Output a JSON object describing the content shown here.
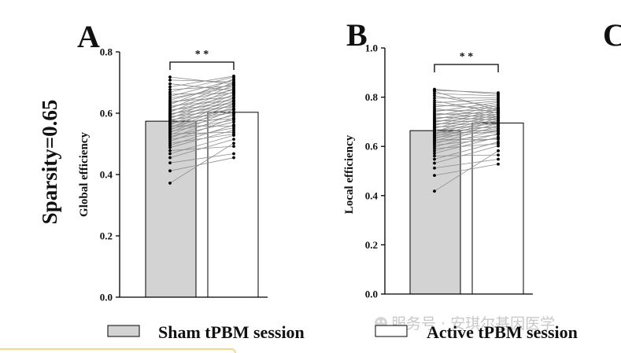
{
  "chart_data": [
    {
      "panel_label": "A",
      "type": "bar",
      "ylabel": "Global efficiency",
      "ylim": [
        0.0,
        0.8
      ],
      "yticks": [
        "0.0",
        "0.2",
        "0.4",
        "0.6",
        "0.8"
      ],
      "categories": [
        "Sham tPBM session",
        "Active tPBM session"
      ],
      "values": [
        0.574,
        0.603
      ],
      "significance": "* *",
      "pairs": [
        [
          0.372,
          0.502
        ],
        [
          0.412,
          0.455
        ],
        [
          0.438,
          0.468
        ],
        [
          0.455,
          0.515
        ],
        [
          0.468,
          0.528
        ],
        [
          0.478,
          0.492
        ],
        [
          0.488,
          0.545
        ],
        [
          0.495,
          0.562
        ],
        [
          0.502,
          0.532
        ],
        [
          0.508,
          0.585
        ],
        [
          0.514,
          0.552
        ],
        [
          0.519,
          0.598
        ],
        [
          0.524,
          0.571
        ],
        [
          0.529,
          0.612
        ],
        [
          0.533,
          0.538
        ],
        [
          0.537,
          0.622
        ],
        [
          0.541,
          0.578
        ],
        [
          0.545,
          0.632
        ],
        [
          0.549,
          0.592
        ],
        [
          0.552,
          0.641
        ],
        [
          0.556,
          0.604
        ],
        [
          0.559,
          0.558
        ],
        [
          0.562,
          0.651
        ],
        [
          0.566,
          0.615
        ],
        [
          0.569,
          0.582
        ],
        [
          0.572,
          0.662
        ],
        [
          0.576,
          0.628
        ],
        [
          0.579,
          0.601
        ],
        [
          0.582,
          0.671
        ],
        [
          0.586,
          0.638
        ],
        [
          0.589,
          0.612
        ],
        [
          0.592,
          0.681
        ],
        [
          0.596,
          0.648
        ],
        [
          0.599,
          0.622
        ],
        [
          0.603,
          0.692
        ],
        [
          0.607,
          0.658
        ],
        [
          0.611,
          0.632
        ],
        [
          0.615,
          0.701
        ],
        [
          0.619,
          0.668
        ],
        [
          0.624,
          0.642
        ],
        [
          0.628,
          0.712
        ],
        [
          0.633,
          0.676
        ],
        [
          0.638,
          0.652
        ],
        [
          0.643,
          0.695
        ],
        [
          0.649,
          0.684
        ],
        [
          0.655,
          0.708
        ],
        [
          0.662,
          0.665
        ],
        [
          0.669,
          0.718
        ],
        [
          0.677,
          0.689
        ],
        [
          0.686,
          0.721
        ],
        [
          0.696,
          0.674
        ],
        [
          0.708,
          0.702
        ],
        [
          0.718,
          0.695
        ]
      ]
    },
    {
      "panel_label": "B",
      "type": "bar",
      "ylabel": "Local efficiency",
      "ylim": [
        0.0,
        1.0
      ],
      "yticks": [
        "0.0",
        "0.2",
        "0.4",
        "0.6",
        "0.8",
        "1.0"
      ],
      "categories": [
        "Sham tPBM session",
        "Active tPBM session"
      ],
      "values": [
        0.664,
        0.695
      ],
      "significance": "* *",
      "pairs": [
        [
          0.418,
          0.582
        ],
        [
          0.482,
          0.528
        ],
        [
          0.512,
          0.548
        ],
        [
          0.532,
          0.602
        ],
        [
          0.548,
          0.618
        ],
        [
          0.561,
          0.565
        ],
        [
          0.572,
          0.638
        ],
        [
          0.582,
          0.652
        ],
        [
          0.591,
          0.611
        ],
        [
          0.598,
          0.668
        ],
        [
          0.605,
          0.632
        ],
        [
          0.611,
          0.682
        ],
        [
          0.617,
          0.648
        ],
        [
          0.622,
          0.694
        ],
        [
          0.627,
          0.629
        ],
        [
          0.632,
          0.705
        ],
        [
          0.637,
          0.662
        ],
        [
          0.641,
          0.715
        ],
        [
          0.645,
          0.672
        ],
        [
          0.649,
          0.724
        ],
        [
          0.653,
          0.684
        ],
        [
          0.657,
          0.655
        ],
        [
          0.661,
          0.733
        ],
        [
          0.665,
          0.694
        ],
        [
          0.669,
          0.662
        ],
        [
          0.673,
          0.742
        ],
        [
          0.677,
          0.704
        ],
        [
          0.681,
          0.675
        ],
        [
          0.685,
          0.751
        ],
        [
          0.689,
          0.714
        ],
        [
          0.693,
          0.688
        ],
        [
          0.697,
          0.758
        ],
        [
          0.701,
          0.722
        ],
        [
          0.705,
          0.698
        ],
        [
          0.709,
          0.766
        ],
        [
          0.714,
          0.731
        ],
        [
          0.719,
          0.707
        ],
        [
          0.724,
          0.772
        ],
        [
          0.729,
          0.739
        ],
        [
          0.735,
          0.715
        ],
        [
          0.741,
          0.779
        ],
        [
          0.747,
          0.746
        ],
        [
          0.754,
          0.722
        ],
        [
          0.761,
          0.785
        ],
        [
          0.769,
          0.752
        ],
        [
          0.777,
          0.792
        ],
        [
          0.786,
          0.735
        ],
        [
          0.796,
          0.798
        ],
        [
          0.806,
          0.758
        ],
        [
          0.815,
          0.805
        ],
        [
          0.824,
          0.745
        ],
        [
          0.832,
          0.812
        ],
        [
          0.828,
          0.818
        ]
      ]
    }
  ],
  "row_label": "Sparsity=0.65",
  "next_panel_label": "C",
  "legend": {
    "items": [
      {
        "label": "Sham tPBM session",
        "color": "#d3d3d3"
      },
      {
        "label": "Active tPBM session",
        "color": "#ffffff"
      }
    ]
  },
  "watermark": "服务号 · 安琪尔基因医学",
  "colors": {
    "sham_bar": "#d3d3d3",
    "active_bar": "#ffffff",
    "line": "#8c8c8c",
    "dot": "#000000"
  }
}
